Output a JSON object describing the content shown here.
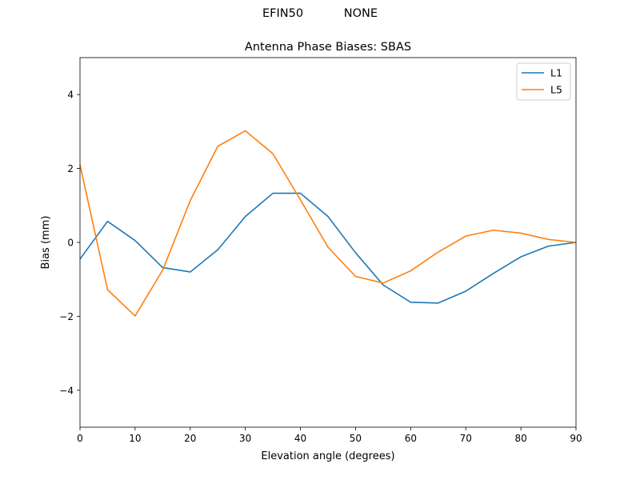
{
  "figure": {
    "suptitle": "EFIN50           NONE"
  },
  "chart_data": {
    "type": "line",
    "title": "Antenna Phase Biases: SBAS",
    "xlabel": "Elevation angle (degrees)",
    "ylabel": "Bias (mm)",
    "xlim": [
      0,
      90
    ],
    "ylim": [
      -5,
      5
    ],
    "xticks": [
      0,
      10,
      20,
      30,
      40,
      50,
      60,
      70,
      80,
      90
    ],
    "yticks": [
      -4,
      -2,
      0,
      2,
      4
    ],
    "ytick_labels": [
      "−4",
      "−2",
      "0",
      "2",
      "4"
    ],
    "grid": false,
    "legend_position": "top-right",
    "x": [
      0,
      5,
      10,
      15,
      20,
      25,
      30,
      35,
      40,
      45,
      50,
      55,
      60,
      65,
      70,
      75,
      80,
      85,
      90
    ],
    "series": [
      {
        "name": "L1",
        "color": "#1f77b4",
        "values": [
          -0.45,
          0.57,
          0.05,
          -0.68,
          -0.8,
          -0.2,
          0.7,
          1.33,
          1.33,
          0.7,
          -0.28,
          -1.15,
          -1.62,
          -1.64,
          -1.32,
          -0.84,
          -0.39,
          -0.1,
          0.0
        ]
      },
      {
        "name": "L5",
        "color": "#ff7f0e",
        "values": [
          2.1,
          -1.28,
          -1.99,
          -0.75,
          1.13,
          2.6,
          3.02,
          2.4,
          1.15,
          -0.13,
          -0.92,
          -1.1,
          -0.77,
          -0.26,
          0.17,
          0.33,
          0.25,
          0.08,
          0.0
        ]
      }
    ]
  }
}
